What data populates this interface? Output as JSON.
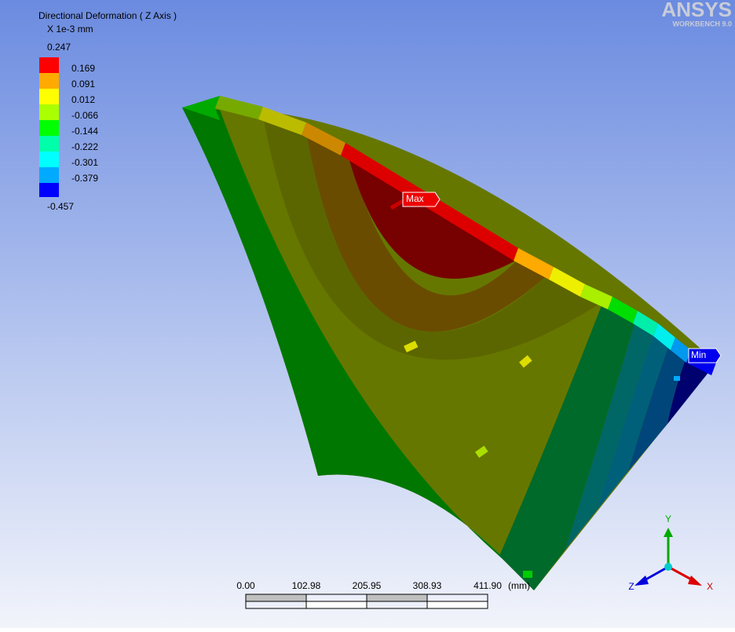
{
  "legend": {
    "title": "Directional Deformation ( Z Axis )",
    "unit": "X 1e-3 mm",
    "levels": [
      "0.247",
      "0.169",
      "0.091",
      "0.012",
      "-0.066",
      "-0.144",
      "-0.222",
      "-0.301",
      "-0.379",
      "-0.457"
    ],
    "colors": [
      "#ff0000",
      "#ffaa00",
      "#ffff00",
      "#aaff00",
      "#00ff00",
      "#00ffaa",
      "#00ffff",
      "#00aaff",
      "#0000ff"
    ]
  },
  "logo": {
    "name": "ANSYS",
    "version": "WORKBENCH 9.0"
  },
  "probes": {
    "max": "Max",
    "min": "Min"
  },
  "scale_bar": {
    "ticks": [
      "0.00",
      "102.98",
      "205.95",
      "308.93",
      "411.90"
    ],
    "unit": "(mm)"
  },
  "triad": {
    "y": "Y",
    "z": "Z",
    "x": "X"
  }
}
